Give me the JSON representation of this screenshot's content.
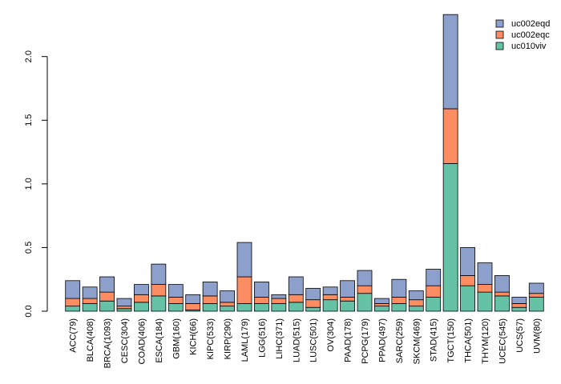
{
  "chart_data": {
    "type": "bar",
    "stacked": true,
    "title": "",
    "xlabel": "",
    "ylabel": "",
    "ylim": [
      0,
      2.35
    ],
    "yticks": [
      0.0,
      0.5,
      1.0,
      1.5,
      2.0
    ],
    "ytick_labels": [
      "0.0",
      "0.5",
      "1.0",
      "1.5",
      "2.0"
    ],
    "legend_position": "top-right",
    "categories": [
      "ACC(79)",
      "BLCA(408)",
      "BRCA(1093)",
      "CESC(304)",
      "COAD(406)",
      "ESCA(184)",
      "GBM(160)",
      "KICH(66)",
      "KIPC(533)",
      "KIRP(290)",
      "LAML(179)",
      "LGG(516)",
      "LIHC(371)",
      "LUAD(515)",
      "LUSC(501)",
      "OV(304)",
      "PAAD(178)",
      "PCPG(179)",
      "PPAD(497)",
      "SARC(259)",
      "SKCM(469)",
      "STAD(415)",
      "TGCT(150)",
      "THCA(501)",
      "THYM(120)",
      "UCEC(545)",
      "UCS(57)",
      "UVM(80)"
    ],
    "series": [
      {
        "name": "uc010viv",
        "color": "#66c2a5",
        "values": [
          0.04,
          0.06,
          0.08,
          0.02,
          0.07,
          0.12,
          0.06,
          0.01,
          0.06,
          0.04,
          0.06,
          0.06,
          0.06,
          0.07,
          0.03,
          0.09,
          0.08,
          0.14,
          0.04,
          0.06,
          0.04,
          0.11,
          1.16,
          0.2,
          0.15,
          0.12,
          0.03,
          0.11
        ]
      },
      {
        "name": "uc002eqc",
        "color": "#fc8d62",
        "values": [
          0.06,
          0.04,
          0.07,
          0.02,
          0.06,
          0.09,
          0.05,
          0.05,
          0.06,
          0.03,
          0.21,
          0.05,
          0.04,
          0.06,
          0.06,
          0.04,
          0.03,
          0.06,
          0.02,
          0.05,
          0.05,
          0.09,
          0.43,
          0.08,
          0.06,
          0.03,
          0.03,
          0.03
        ]
      },
      {
        "name": "uc002eqd",
        "color": "#8da0cb",
        "values": [
          0.14,
          0.09,
          0.12,
          0.06,
          0.08,
          0.16,
          0.1,
          0.07,
          0.11,
          0.09,
          0.27,
          0.12,
          0.03,
          0.14,
          0.09,
          0.06,
          0.13,
          0.12,
          0.04,
          0.14,
          0.07,
          0.13,
          0.74,
          0.22,
          0.17,
          0.13,
          0.05,
          0.08
        ]
      }
    ],
    "legend_order": [
      "uc002eqd",
      "uc002eqc",
      "uc010viv"
    ]
  }
}
